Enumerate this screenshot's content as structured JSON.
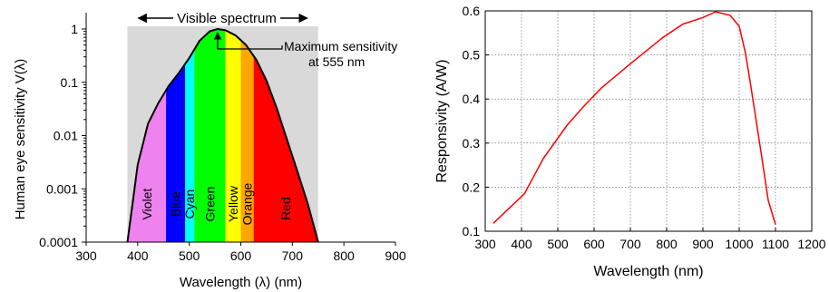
{
  "chart_data": [
    {
      "type": "area",
      "title": "",
      "xlabel": "Wavelength (λ) (nm)",
      "ylabel": "Human eye sensitivity V(λ)",
      "xlim": [
        300,
        900
      ],
      "ylim": [
        0.0001,
        1
      ],
      "yscale": "log",
      "grid": false,
      "x_ticks": [
        "300",
        "400",
        "500",
        "600",
        "700",
        "800",
        "900"
      ],
      "y_ticks": [
        "0.0001",
        "0.001",
        "0.01",
        "0.1",
        "1"
      ],
      "visible_range": [
        380,
        750
      ],
      "visible_label": "Visible spectrum",
      "annotation": {
        "text_line1": "Maximum sensitivity",
        "text_line2": "at 555 nm",
        "x": 555
      },
      "bands": [
        {
          "name": "Violet",
          "from": 380,
          "to": 455,
          "color": "#ee82ee"
        },
        {
          "name": "Blue",
          "from": 455,
          "to": 492,
          "color": "#0000ff"
        },
        {
          "name": "Cyan",
          "from": 492,
          "to": 510,
          "color": "#00ffff"
        },
        {
          "name": "Green",
          "from": 510,
          "to": 570,
          "color": "#00ff00"
        },
        {
          "name": "Yellow",
          "from": 570,
          "to": 600,
          "color": "#ffff00"
        },
        {
          "name": "Orange",
          "from": 600,
          "to": 625,
          "color": "#ffa500"
        },
        {
          "name": "Red",
          "from": 625,
          "to": 750,
          "color": "#ff0000"
        }
      ],
      "curve": {
        "x": [
          380,
          400,
          420,
          440,
          460,
          480,
          500,
          520,
          540,
          555,
          570,
          590,
          610,
          630,
          650,
          670,
          690,
          710,
          730,
          750
        ],
        "y": [
          0.0001,
          0.00282,
          0.0168,
          0.0409,
          0.0851,
          0.151,
          0.286,
          0.6,
          0.91,
          1.0,
          0.952,
          0.757,
          0.503,
          0.265,
          0.107,
          0.032,
          0.0082,
          0.0021,
          0.00052,
          0.0001
        ]
      }
    },
    {
      "type": "line",
      "title": "",
      "xlabel": "Wavelength (nm)",
      "ylabel": "Responsivity (A/W)",
      "xlim": [
        300,
        1200
      ],
      "ylim": [
        0.1,
        0.6
      ],
      "grid": true,
      "x_ticks": [
        "300",
        "400",
        "500",
        "600",
        "700",
        "800",
        "900",
        "1000",
        "1100",
        "1200"
      ],
      "y_ticks": [
        "0.1",
        "0.2",
        "0.3",
        "0.4",
        "0.5",
        "0.6"
      ],
      "line_color": "#ff0000",
      "series": [
        {
          "x": [
            322,
            408,
            460,
            525,
            570,
            620,
            700,
            790,
            845,
            900,
            935,
            975,
            1000,
            1017,
            1030,
            1045,
            1060,
            1080,
            1100
          ],
          "y": [
            0.118,
            0.185,
            0.265,
            0.34,
            0.382,
            0.425,
            0.48,
            0.54,
            0.57,
            0.585,
            0.598,
            0.59,
            0.565,
            0.505,
            0.44,
            0.36,
            0.28,
            0.17,
            0.115
          ]
        }
      ]
    }
  ]
}
